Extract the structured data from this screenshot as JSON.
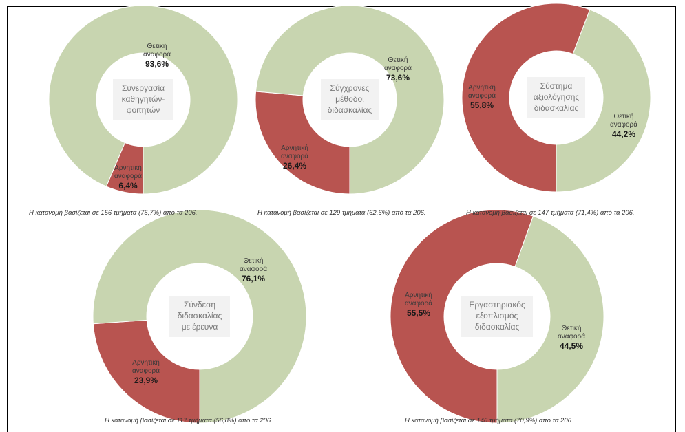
{
  "chart_data": [
    {
      "type": "pie",
      "title": "Συνεργασία καθηγητών-φοιτητών",
      "title_lines": [
        "Συνεργασία",
        "καθηγητών-",
        "φοιτητών"
      ],
      "labels": [
        "Θετική αναφορά",
        "Αρνητική αναφορά"
      ],
      "values": [
        93.6,
        6.4
      ],
      "value_labels": [
        "93,6%",
        "6,4%"
      ],
      "colors": [
        "#c8d5b0",
        "#b85450"
      ],
      "note": "Η κατανομή βασίζεται σε 156 τμήματα (75,7%) από τα 206."
    },
    {
      "type": "pie",
      "title": "Σύγχρονες μέθοδοι διδασκαλίας",
      "title_lines": [
        "Σύγχρονες",
        "μέθοδοι",
        "διδασκαλίας"
      ],
      "labels": [
        "Θετική αναφορά",
        "Αρνητική αναφορά"
      ],
      "values": [
        73.6,
        26.4
      ],
      "value_labels": [
        "73,6%",
        "26,4%"
      ],
      "colors": [
        "#c8d5b0",
        "#b85450"
      ],
      "note": "Η κατανομή βασίζεται σε 129 τμήματα (62,6%) από τα 206."
    },
    {
      "type": "pie",
      "title": "Σύστημα αξιολόγησης διδασκαλίας",
      "title_lines": [
        "Σύστημα",
        "αξιολόγησης",
        "διδασκαλίας"
      ],
      "labels": [
        "Θετική αναφορά",
        "Αρνητική αναφορά"
      ],
      "values": [
        44.2,
        55.8
      ],
      "value_labels": [
        "44,2%",
        "55,8%"
      ],
      "colors": [
        "#c8d5b0",
        "#b85450"
      ],
      "note": "Η κατανομή βασίζεται σε 147 τμήματα (71,4%) από τα 206."
    },
    {
      "type": "pie",
      "title": "Σύνδεση διδασκαλίας με έρευνα",
      "title_lines": [
        "Σύνδεση",
        "διδασκαλίας",
        "με έρευνα"
      ],
      "labels": [
        "Θετική αναφορά",
        "Αρνητική αναφορά"
      ],
      "values": [
        76.1,
        23.9
      ],
      "value_labels": [
        "76,1%",
        "23,9%"
      ],
      "colors": [
        "#c8d5b0",
        "#b85450"
      ],
      "note": "Η κατανομή βασίζεται σε 117 τμήματα (56,8%) από τα 206."
    },
    {
      "type": "pie",
      "title": "Εργαστηριακός εξοπλισμός διδασκαλίας",
      "title_lines": [
        "Εργαστηριακός",
        "εξοπλισμός",
        "διδασκαλίας"
      ],
      "labels": [
        "Θετική αναφορά",
        "Αρνητική αναφορά"
      ],
      "values": [
        44.5,
        55.5
      ],
      "value_labels": [
        "44,5%",
        "55,5%"
      ],
      "colors": [
        "#c8d5b0",
        "#b85450"
      ],
      "note": "Η κατανομή βασίζεται σε 146 τμήματα (70,9%) από τα 206."
    }
  ]
}
